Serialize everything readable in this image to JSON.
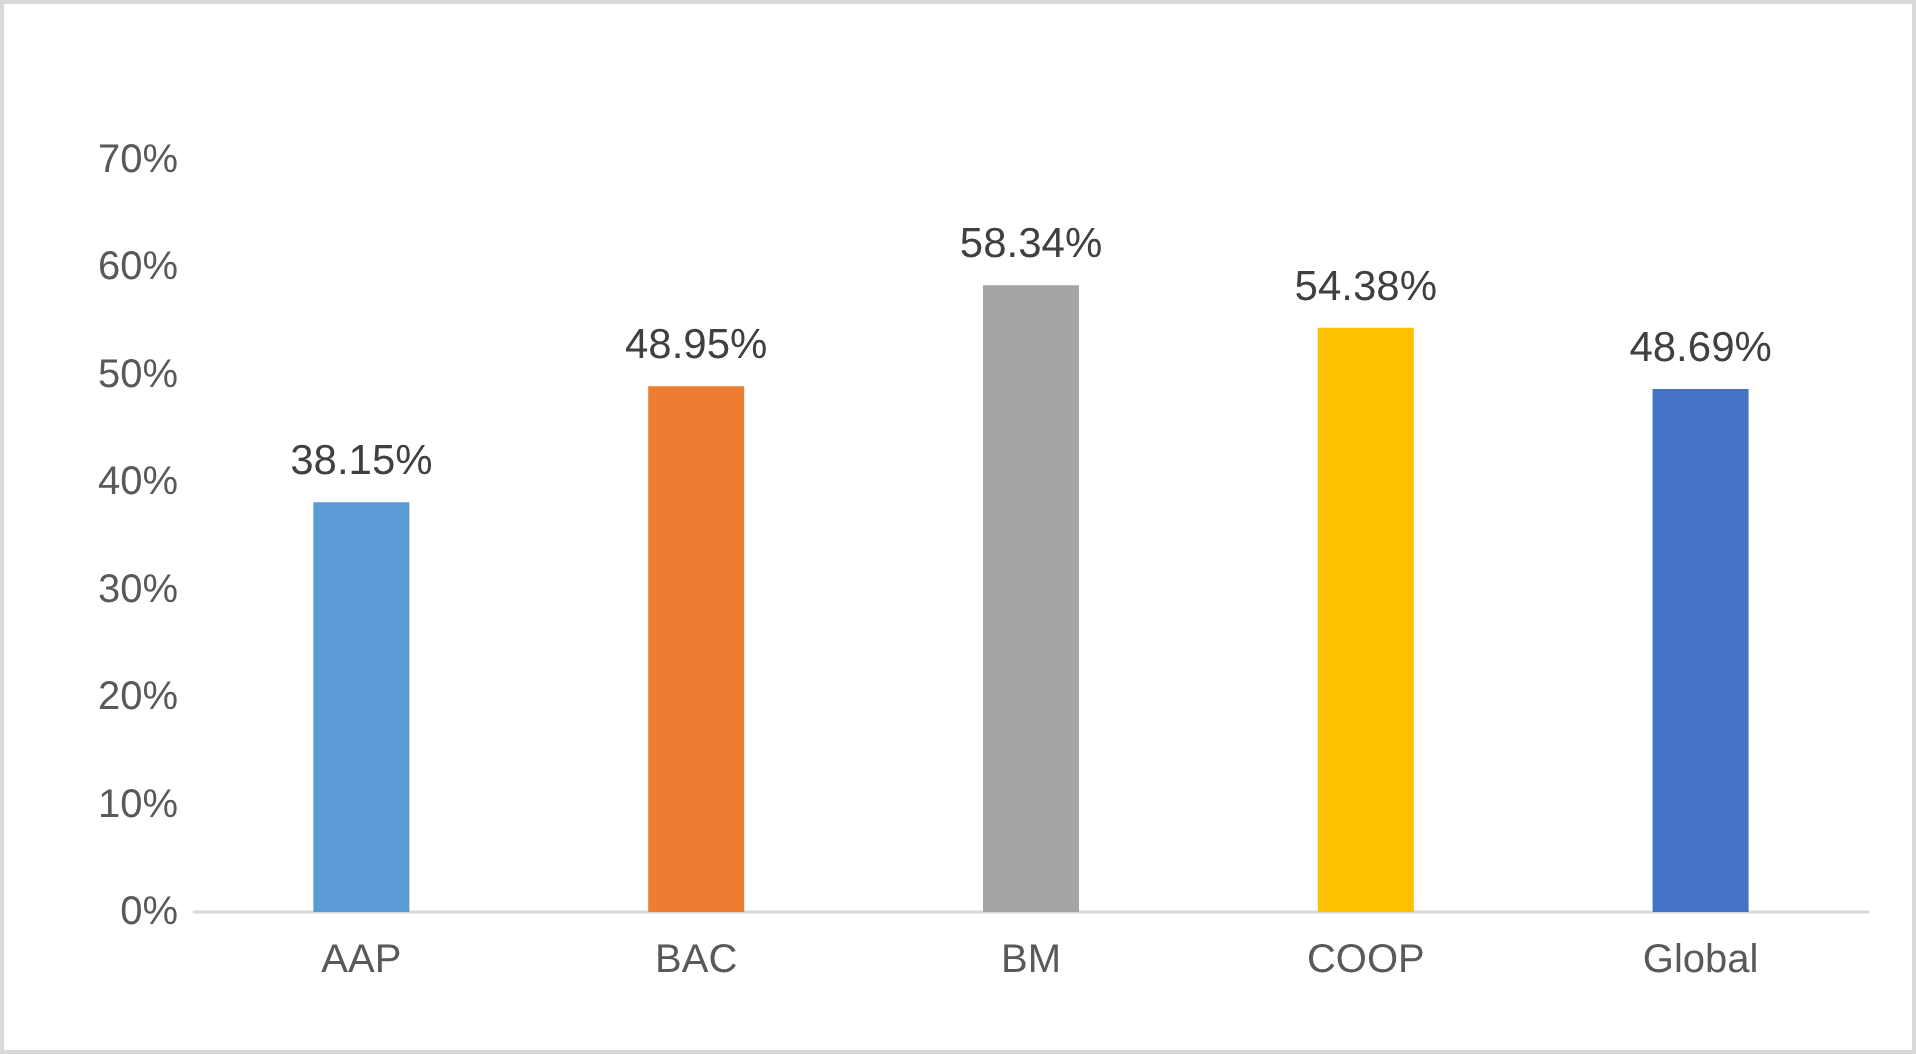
{
  "chart_data": {
    "type": "bar",
    "categories": [
      "AAP",
      "BAC",
      "BM",
      "COOP",
      "Global"
    ],
    "values": [
      38.15,
      48.95,
      58.34,
      54.38,
      48.69
    ],
    "colors": [
      "#5b9bd5",
      "#ed7d31",
      "#a5a5a5",
      "#ffc000",
      "#4472c4"
    ],
    "value_labels": [
      "38.15%",
      "48.95%",
      "58.34%",
      "54.38%",
      "48.69%"
    ],
    "ylim": [
      0,
      70
    ],
    "yticks": [
      {
        "value": 0,
        "label": "0%"
      },
      {
        "value": 10,
        "label": "10%"
      },
      {
        "value": 20,
        "label": "20%"
      },
      {
        "value": 30,
        "label": "30%"
      },
      {
        "value": 40,
        "label": "40%"
      },
      {
        "value": 50,
        "label": "50%"
      },
      {
        "value": 60,
        "label": "60%"
      },
      {
        "value": 70,
        "label": "70%"
      }
    ],
    "grid": false
  }
}
